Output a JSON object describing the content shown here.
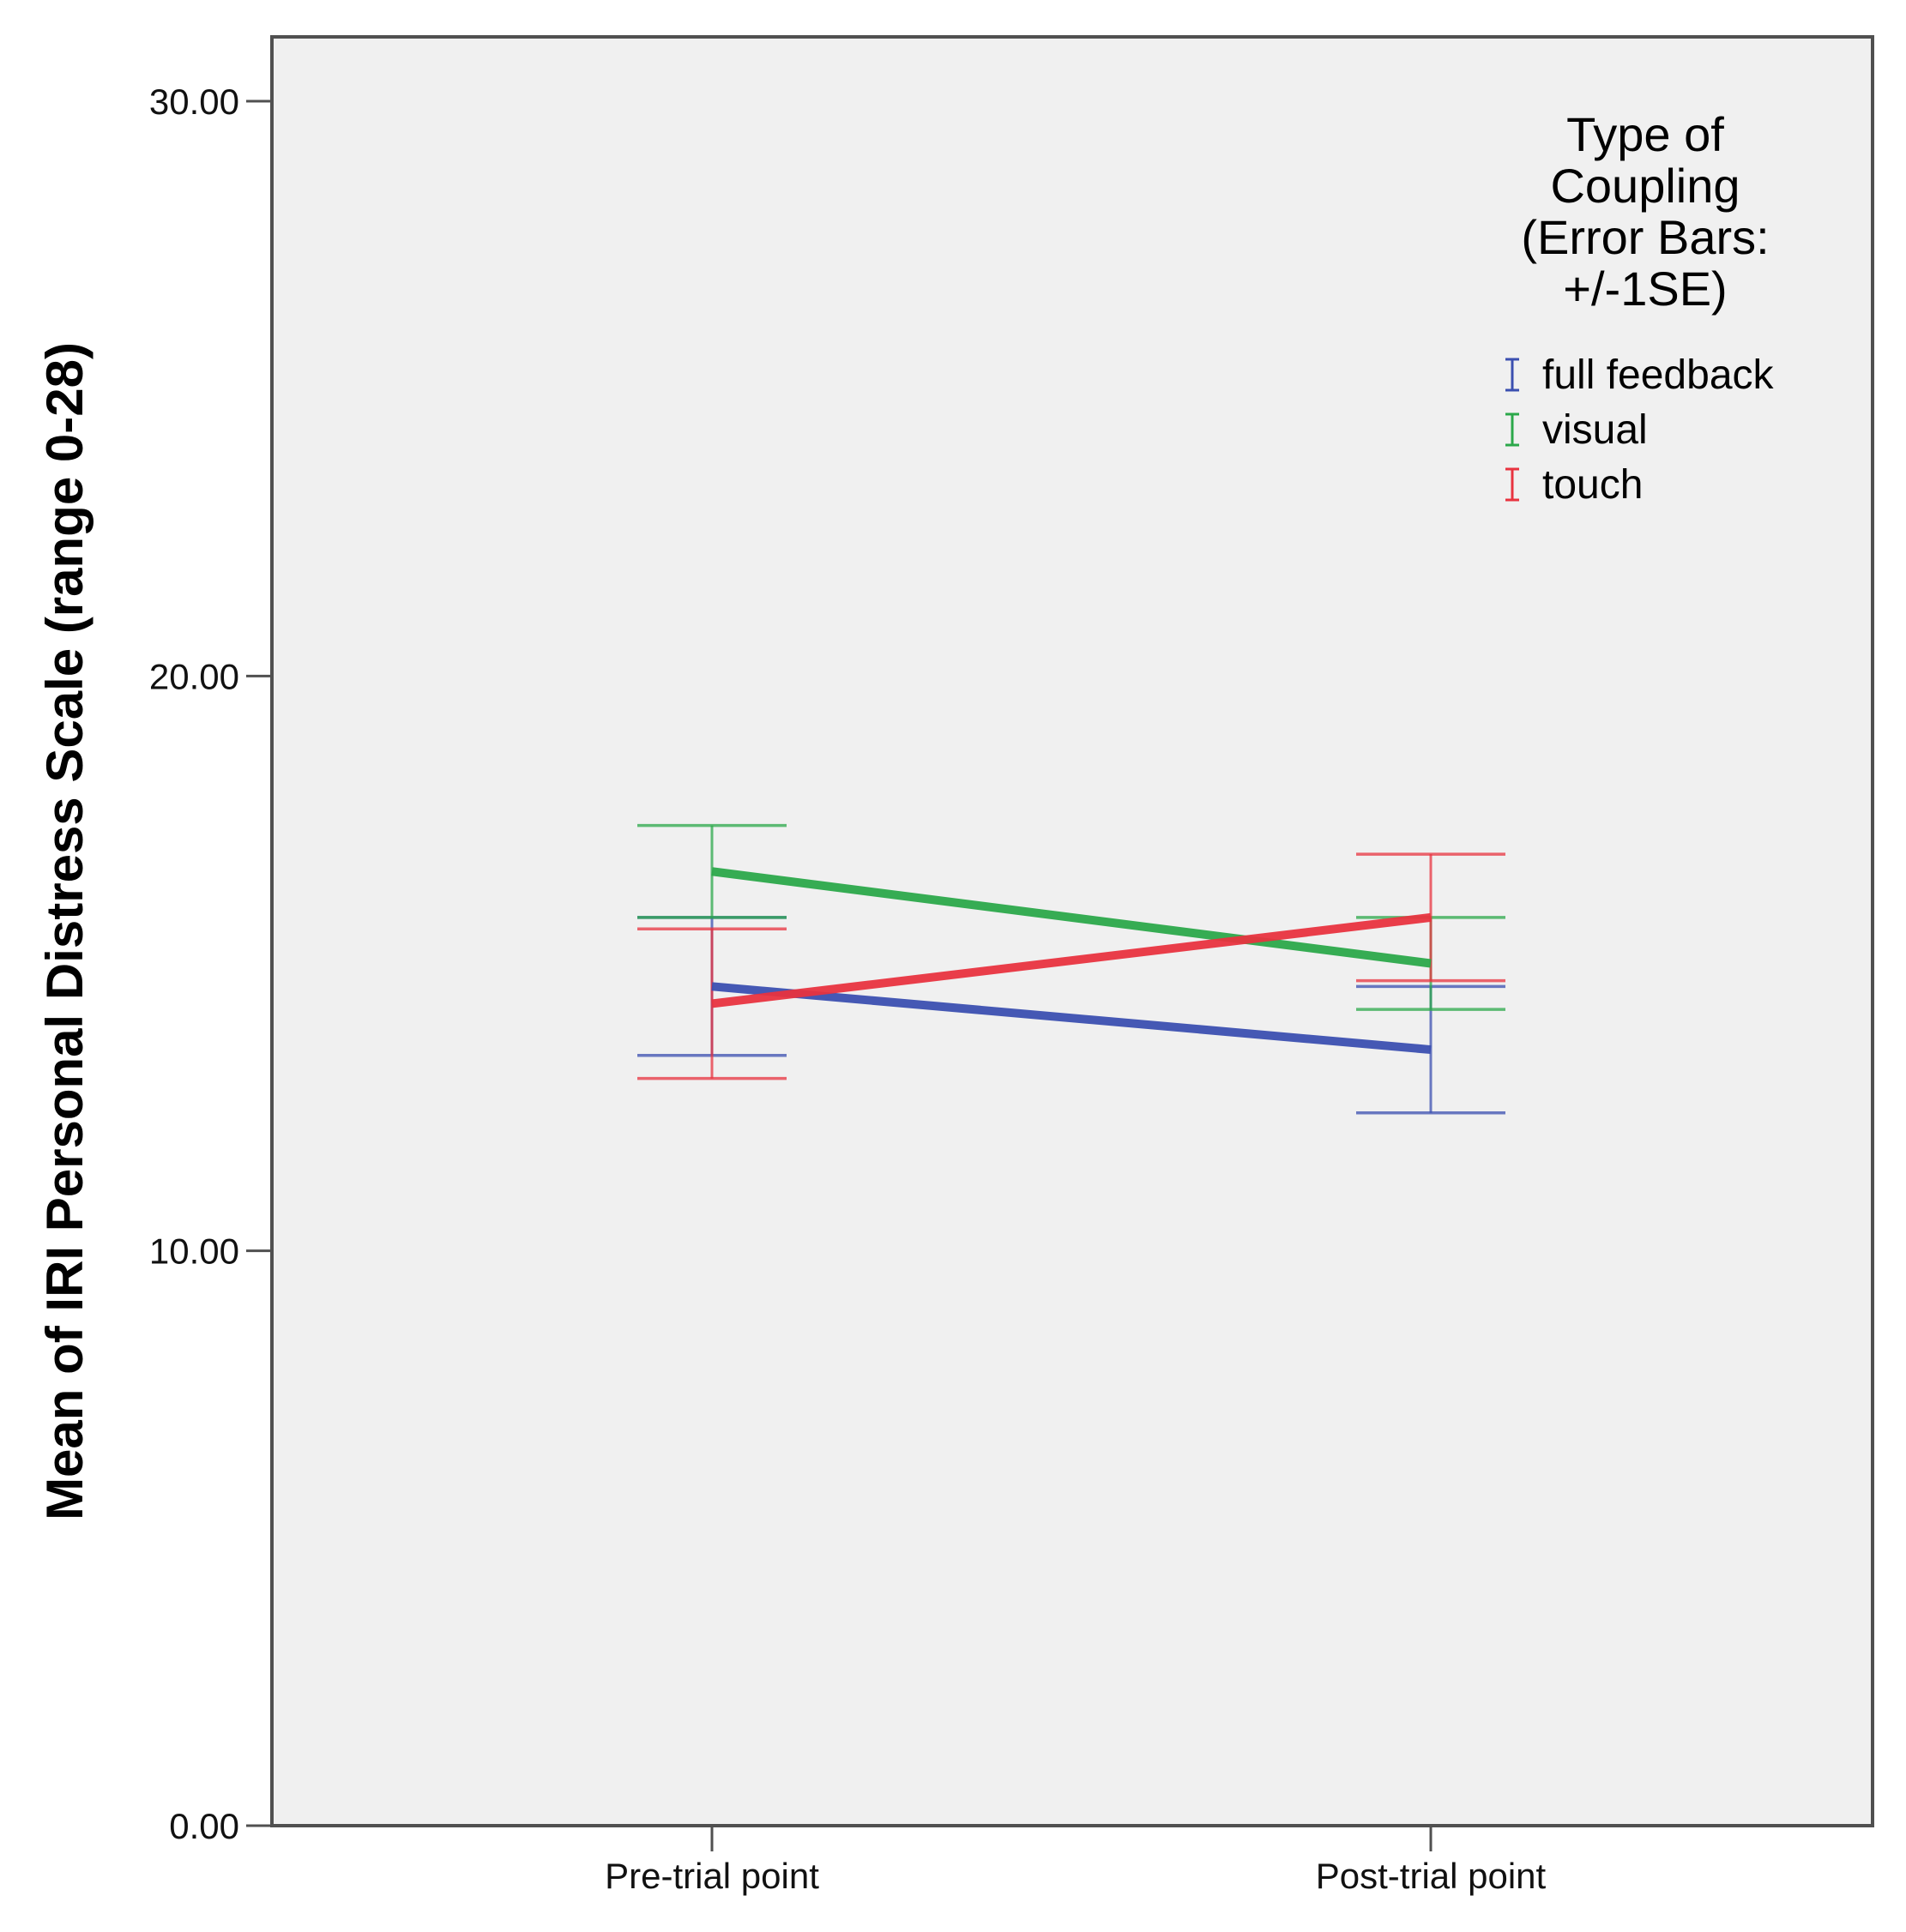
{
  "chart_data": {
    "type": "line",
    "title": "",
    "xlabel": "",
    "ylabel": "Mean of IRI Personal Distress Scale (range 0-28)",
    "ylim": [
      0,
      30
    ],
    "yticks": [
      0,
      10,
      20,
      30
    ],
    "ytick_labels": [
      "0.00",
      "10.00",
      "20.00",
      "30.00"
    ],
    "categories": [
      "Pre-trial point",
      "Post-trial point"
    ],
    "legend": {
      "title_lines": [
        "Type of",
        "Coupling",
        "(Error Bars:",
        "+/-1SE)"
      ],
      "position": "top-right"
    },
    "series": [
      {
        "name": "full feedback",
        "color": "#3b4fb0",
        "values": [
          14.6,
          13.5
        ],
        "se": [
          1.2,
          1.1
        ]
      },
      {
        "name": "visual",
        "color": "#2ba84a",
        "values": [
          16.6,
          15.0
        ],
        "se": [
          0.8,
          0.8
        ]
      },
      {
        "name": "touch",
        "color": "#e8333f",
        "values": [
          14.3,
          15.8
        ],
        "se": [
          1.3,
          1.1
        ]
      }
    ]
  }
}
